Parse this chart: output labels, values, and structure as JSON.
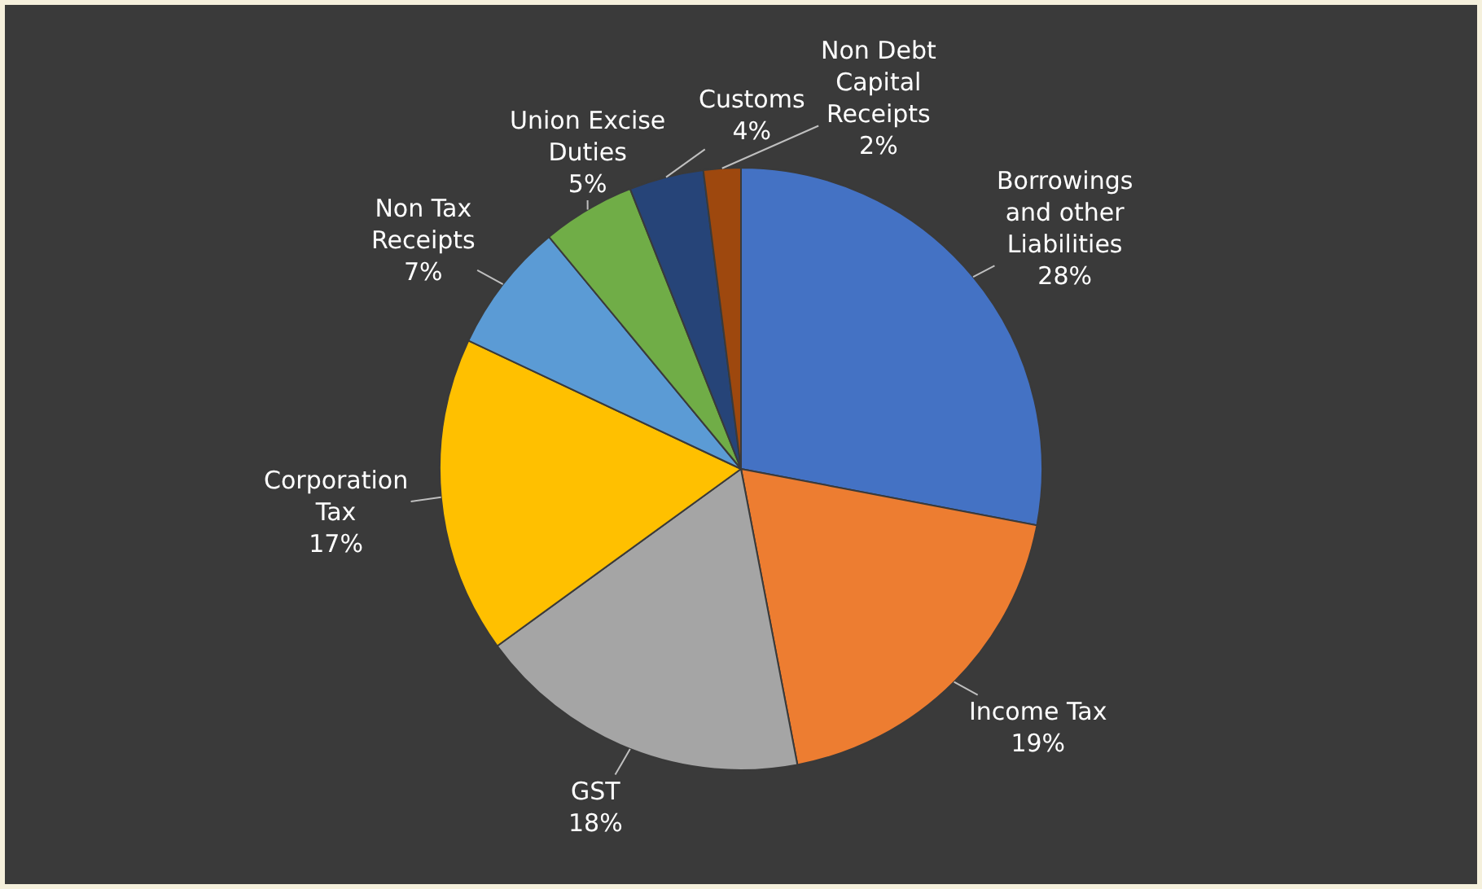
{
  "chart_data": {
    "type": "pie",
    "categories": [
      "Borrowings and other Liabilities",
      "Income Tax",
      "GST",
      "Corporation Tax",
      "Non Tax Receipts",
      "Union Excise Duties",
      "Customs",
      "Non Debt Capital Receipts"
    ],
    "values": [
      28,
      19,
      18,
      17,
      7,
      5,
      4,
      2
    ],
    "value_labels": [
      "28%",
      "19%",
      "18%",
      "17%",
      "7%",
      "5%",
      "4%",
      "2%"
    ],
    "colors": [
      "#4472c4",
      "#ed7d31",
      "#a5a5a5",
      "#ffc000",
      "#5b9bd5",
      "#70ad47",
      "#264478",
      "#9e480e"
    ],
    "legend": false
  }
}
